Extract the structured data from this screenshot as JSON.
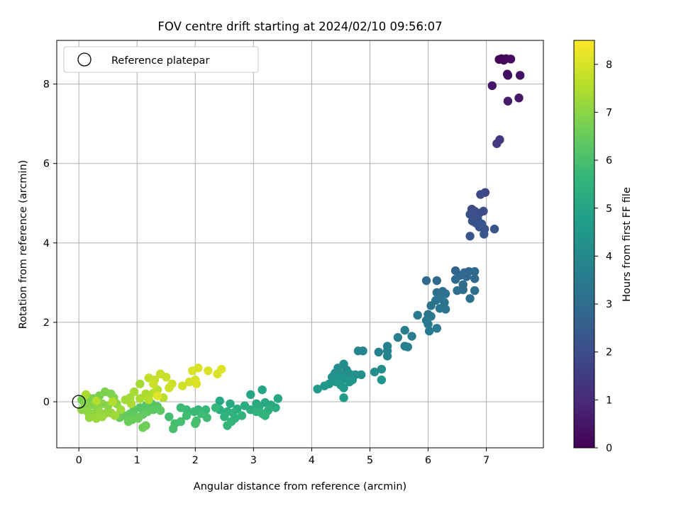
{
  "chart_data": {
    "type": "scatter",
    "title": "FOV centre drift starting at 2024/02/10 09:56:07",
    "xlabel": "Angular distance from reference (arcmin)",
    "ylabel": "Rotation from reference (arcmin)",
    "xlim": [
      -0.38,
      7.98
    ],
    "ylim": [
      -1.16,
      9.1
    ],
    "xticks": [
      0,
      1,
      2,
      3,
      4,
      5,
      6,
      7
    ],
    "yticks": [
      0,
      2,
      4,
      6,
      8
    ],
    "grid": true,
    "legend": {
      "placement": "top-left",
      "entries": [
        "Reference platepar"
      ]
    },
    "reference_point": {
      "label": "Reference platepar",
      "x": 0,
      "y": 0
    },
    "colorbar": {
      "label": "Hours from first FF file",
      "colormap": "viridis",
      "min": 0,
      "max": 8.5,
      "ticks": [
        0,
        1,
        2,
        3,
        4,
        5,
        6,
        7,
        8
      ]
    },
    "colormap_stops": [
      "#440154",
      "#482878",
      "#3e4989",
      "#31688e",
      "#26828e",
      "#1f9e89",
      "#35b779",
      "#6ece58",
      "#b5de2b",
      "#fde725"
    ],
    "points": [
      {
        "x": 7.22,
        "y": 8.62,
        "c": 0.05
      },
      {
        "x": 7.26,
        "y": 8.64,
        "c": 0.1
      },
      {
        "x": 7.3,
        "y": 8.6,
        "c": 0.15
      },
      {
        "x": 7.34,
        "y": 8.64,
        "c": 0.2
      },
      {
        "x": 7.42,
        "y": 8.63,
        "c": 0.25
      },
      {
        "x": 7.36,
        "y": 8.25,
        "c": 0.3
      },
      {
        "x": 7.37,
        "y": 8.22,
        "c": 0.35
      },
      {
        "x": 7.58,
        "y": 8.22,
        "c": 0.4
      },
      {
        "x": 7.1,
        "y": 7.96,
        "c": 0.5
      },
      {
        "x": 7.56,
        "y": 7.65,
        "c": 0.55
      },
      {
        "x": 7.37,
        "y": 7.57,
        "c": 0.6
      },
      {
        "x": 7.23,
        "y": 6.6,
        "c": 1.4
      },
      {
        "x": 7.18,
        "y": 6.5,
        "c": 1.45
      },
      {
        "x": 6.98,
        "y": 5.27,
        "c": 1.85
      },
      {
        "x": 6.9,
        "y": 5.22,
        "c": 1.9
      },
      {
        "x": 6.75,
        "y": 4.85,
        "c": 1.95
      },
      {
        "x": 6.8,
        "y": 4.8,
        "c": 2.0
      },
      {
        "x": 6.88,
        "y": 4.75,
        "c": 2.0
      },
      {
        "x": 6.95,
        "y": 4.8,
        "c": 2.05
      },
      {
        "x": 6.72,
        "y": 4.72,
        "c": 2.1
      },
      {
        "x": 6.85,
        "y": 4.62,
        "c": 2.1
      },
      {
        "x": 6.76,
        "y": 4.55,
        "c": 2.15
      },
      {
        "x": 6.82,
        "y": 4.5,
        "c": 2.15
      },
      {
        "x": 6.92,
        "y": 4.48,
        "c": 2.2
      },
      {
        "x": 6.88,
        "y": 4.4,
        "c": 2.2
      },
      {
        "x": 6.97,
        "y": 4.35,
        "c": 2.25
      },
      {
        "x": 7.14,
        "y": 4.35,
        "c": 2.25
      },
      {
        "x": 6.96,
        "y": 4.22,
        "c": 2.3
      },
      {
        "x": 6.72,
        "y": 4.17,
        "c": 2.3
      },
      {
        "x": 6.47,
        "y": 3.3,
        "c": 2.75
      },
      {
        "x": 6.62,
        "y": 3.25,
        "c": 2.8
      },
      {
        "x": 6.7,
        "y": 3.28,
        "c": 2.8
      },
      {
        "x": 6.8,
        "y": 3.28,
        "c": 2.85
      },
      {
        "x": 6.55,
        "y": 3.18,
        "c": 2.85
      },
      {
        "x": 6.66,
        "y": 3.15,
        "c": 2.9
      },
      {
        "x": 6.47,
        "y": 3.08,
        "c": 2.9
      },
      {
        "x": 6.8,
        "y": 3.1,
        "c": 2.9
      },
      {
        "x": 5.97,
        "y": 3.05,
        "c": 2.95
      },
      {
        "x": 6.15,
        "y": 3.05,
        "c": 2.95
      },
      {
        "x": 6.6,
        "y": 2.95,
        "c": 3.0
      },
      {
        "x": 6.6,
        "y": 2.82,
        "c": 3.0
      },
      {
        "x": 6.5,
        "y": 2.8,
        "c": 3.05
      },
      {
        "x": 6.8,
        "y": 2.8,
        "c": 3.05
      },
      {
        "x": 6.15,
        "y": 2.75,
        "c": 3.1
      },
      {
        "x": 6.25,
        "y": 2.78,
        "c": 3.1
      },
      {
        "x": 6.3,
        "y": 2.72,
        "c": 3.15
      },
      {
        "x": 6.72,
        "y": 2.6,
        "c": 3.15
      },
      {
        "x": 6.2,
        "y": 2.6,
        "c": 3.2
      },
      {
        "x": 6.13,
        "y": 2.55,
        "c": 3.2
      },
      {
        "x": 6.28,
        "y": 2.5,
        "c": 3.25
      },
      {
        "x": 6.05,
        "y": 2.42,
        "c": 3.25
      },
      {
        "x": 6.2,
        "y": 2.35,
        "c": 3.3
      },
      {
        "x": 6.3,
        "y": 2.33,
        "c": 3.3
      },
      {
        "x": 6.0,
        "y": 2.2,
        "c": 3.35
      },
      {
        "x": 5.82,
        "y": 2.18,
        "c": 3.4
      },
      {
        "x": 6.05,
        "y": 2.15,
        "c": 3.4
      },
      {
        "x": 5.97,
        "y": 2.05,
        "c": 3.45
      },
      {
        "x": 6.0,
        "y": 1.95,
        "c": 3.45
      },
      {
        "x": 6.15,
        "y": 1.85,
        "c": 3.5
      },
      {
        "x": 6.02,
        "y": 1.78,
        "c": 3.5
      },
      {
        "x": 5.6,
        "y": 1.8,
        "c": 3.55
      },
      {
        "x": 5.72,
        "y": 1.65,
        "c": 3.6
      },
      {
        "x": 5.48,
        "y": 1.62,
        "c": 3.6
      },
      {
        "x": 5.6,
        "y": 1.4,
        "c": 3.65
      },
      {
        "x": 5.3,
        "y": 1.4,
        "c": 3.7
      },
      {
        "x": 5.65,
        "y": 1.38,
        "c": 3.7
      },
      {
        "x": 5.3,
        "y": 1.28,
        "c": 3.75
      },
      {
        "x": 5.15,
        "y": 1.25,
        "c": 3.75
      },
      {
        "x": 5.3,
        "y": 1.15,
        "c": 3.8
      },
      {
        "x": 4.8,
        "y": 1.28,
        "c": 3.85
      },
      {
        "x": 4.88,
        "y": 1.28,
        "c": 3.85
      },
      {
        "x": 4.55,
        "y": 0.95,
        "c": 4.1
      },
      {
        "x": 4.45,
        "y": 0.85,
        "c": 4.1
      },
      {
        "x": 4.6,
        "y": 0.8,
        "c": 4.15
      },
      {
        "x": 5.2,
        "y": 0.82,
        "c": 4.15
      },
      {
        "x": 5.08,
        "y": 0.75,
        "c": 4.2
      },
      {
        "x": 4.4,
        "y": 0.72,
        "c": 4.2
      },
      {
        "x": 4.5,
        "y": 0.7,
        "c": 4.25
      },
      {
        "x": 4.65,
        "y": 0.7,
        "c": 4.25
      },
      {
        "x": 4.75,
        "y": 0.68,
        "c": 4.3
      },
      {
        "x": 4.85,
        "y": 0.68,
        "c": 4.3
      },
      {
        "x": 4.35,
        "y": 0.62,
        "c": 4.35
      },
      {
        "x": 4.47,
        "y": 0.6,
        "c": 4.35
      },
      {
        "x": 4.55,
        "y": 0.58,
        "c": 4.4
      },
      {
        "x": 4.7,
        "y": 0.55,
        "c": 4.4
      },
      {
        "x": 5.2,
        "y": 0.55,
        "c": 4.45
      },
      {
        "x": 4.42,
        "y": 0.5,
        "c": 4.45
      },
      {
        "x": 4.65,
        "y": 0.5,
        "c": 4.5
      },
      {
        "x": 4.3,
        "y": 0.45,
        "c": 4.5
      },
      {
        "x": 4.5,
        "y": 0.42,
        "c": 4.55
      },
      {
        "x": 4.22,
        "y": 0.4,
        "c": 4.55
      },
      {
        "x": 4.55,
        "y": 0.35,
        "c": 4.6
      },
      {
        "x": 4.1,
        "y": 0.32,
        "c": 4.6
      },
      {
        "x": 4.55,
        "y": 0.1,
        "c": 4.65
      },
      {
        "x": 3.15,
        "y": 0.3,
        "c": 5.0
      },
      {
        "x": 2.95,
        "y": 0.18,
        "c": 5.0
      },
      {
        "x": 3.42,
        "y": 0.08,
        "c": 5.05
      },
      {
        "x": 2.42,
        "y": 0.02,
        "c": 5.05
      },
      {
        "x": 3.2,
        "y": -0.02,
        "c": 5.1
      },
      {
        "x": 3.05,
        "y": -0.05,
        "c": 5.1
      },
      {
        "x": 2.6,
        "y": -0.05,
        "c": 5.15
      },
      {
        "x": 3.3,
        "y": -0.08,
        "c": 5.15
      },
      {
        "x": 2.85,
        "y": -0.1,
        "c": 5.2
      },
      {
        "x": 3.1,
        "y": -0.12,
        "c": 5.2
      },
      {
        "x": 3.38,
        "y": -0.15,
        "c": 5.25
      },
      {
        "x": 2.72,
        "y": -0.18,
        "c": 5.25
      },
      {
        "x": 2.42,
        "y": -0.2,
        "c": 5.3
      },
      {
        "x": 2.95,
        "y": -0.2,
        "c": 5.3
      },
      {
        "x": 3.25,
        "y": -0.22,
        "c": 5.35
      },
      {
        "x": 2.55,
        "y": -0.25,
        "c": 5.35
      },
      {
        "x": 3.05,
        "y": -0.25,
        "c": 5.4
      },
      {
        "x": 2.65,
        "y": -0.28,
        "c": 5.4
      },
      {
        "x": 3.15,
        "y": -0.3,
        "c": 5.45
      },
      {
        "x": 2.8,
        "y": -0.35,
        "c": 5.45
      },
      {
        "x": 3.2,
        "y": -0.35,
        "c": 5.5
      },
      {
        "x": 2.5,
        "y": -0.38,
        "c": 5.5
      },
      {
        "x": 2.68,
        "y": -0.42,
        "c": 5.55
      },
      {
        "x": 2.62,
        "y": -0.5,
        "c": 5.55
      },
      {
        "x": 2.55,
        "y": -0.6,
        "c": 5.6
      },
      {
        "x": 2.35,
        "y": -0.15,
        "c": 5.65
      },
      {
        "x": 2.18,
        "y": -0.2,
        "c": 5.7
      },
      {
        "x": 2.05,
        "y": -0.2,
        "c": 5.7
      },
      {
        "x": 1.98,
        "y": -0.25,
        "c": 5.75
      },
      {
        "x": 1.85,
        "y": -0.2,
        "c": 5.75
      },
      {
        "x": 1.75,
        "y": -0.15,
        "c": 5.8
      },
      {
        "x": 2.1,
        "y": -0.3,
        "c": 5.8
      },
      {
        "x": 1.85,
        "y": -0.35,
        "c": 5.85
      },
      {
        "x": 2.2,
        "y": -0.4,
        "c": 5.85
      },
      {
        "x": 1.55,
        "y": -0.38,
        "c": 5.9
      },
      {
        "x": 2.02,
        "y": -0.48,
        "c": 5.9
      },
      {
        "x": 1.75,
        "y": -0.5,
        "c": 5.95
      },
      {
        "x": 1.65,
        "y": -0.55,
        "c": 5.95
      },
      {
        "x": 2.0,
        "y": -0.55,
        "c": 6.0
      },
      {
        "x": 1.62,
        "y": -0.68,
        "c": 6.0
      },
      {
        "x": 1.25,
        "y": -0.05,
        "c": 6.2
      },
      {
        "x": 1.15,
        "y": -0.1,
        "c": 6.2
      },
      {
        "x": 1.35,
        "y": -0.12,
        "c": 6.25
      },
      {
        "x": 1.05,
        "y": -0.15,
        "c": 6.25
      },
      {
        "x": 1.28,
        "y": -0.2,
        "c": 6.3
      },
      {
        "x": 0.95,
        "y": -0.2,
        "c": 6.3
      },
      {
        "x": 1.18,
        "y": -0.25,
        "c": 6.35
      },
      {
        "x": 1.4,
        "y": -0.22,
        "c": 6.35
      },
      {
        "x": 0.88,
        "y": -0.3,
        "c": 6.4
      },
      {
        "x": 1.1,
        "y": -0.32,
        "c": 6.4
      },
      {
        "x": 0.78,
        "y": -0.35,
        "c": 6.45
      },
      {
        "x": 1.0,
        "y": -0.38,
        "c": 6.45
      },
      {
        "x": 0.7,
        "y": -0.4,
        "c": 6.5
      },
      {
        "x": 0.92,
        "y": -0.45,
        "c": 6.5
      },
      {
        "x": 1.02,
        "y": -0.42,
        "c": 6.55
      },
      {
        "x": 0.85,
        "y": -0.5,
        "c": 6.55
      },
      {
        "x": 1.15,
        "y": -0.6,
        "c": 6.6
      },
      {
        "x": 1.1,
        "y": -0.65,
        "c": 6.6
      },
      {
        "x": 0.05,
        "y": 0.05,
        "c": 6.7
      },
      {
        "x": 0.15,
        "y": 0.12,
        "c": 6.7
      },
      {
        "x": 0.25,
        "y": 0.08,
        "c": 6.75
      },
      {
        "x": 0.35,
        "y": 0.15,
        "c": 6.75
      },
      {
        "x": 0.45,
        "y": 0.25,
        "c": 6.8
      },
      {
        "x": 0.55,
        "y": 0.2,
        "c": 6.8
      },
      {
        "x": 0.6,
        "y": 0.1,
        "c": 6.85
      },
      {
        "x": 0.1,
        "y": -0.05,
        "c": 6.85
      },
      {
        "x": 0.2,
        "y": -0.08,
        "c": 6.9
      },
      {
        "x": 0.3,
        "y": -0.12,
        "c": 6.9
      },
      {
        "x": 0.4,
        "y": -0.05,
        "c": 6.95
      },
      {
        "x": 0.5,
        "y": -0.1,
        "c": 6.95
      },
      {
        "x": 0.65,
        "y": -0.05,
        "c": 7.0
      },
      {
        "x": 0.05,
        "y": -0.2,
        "c": 7.0
      },
      {
        "x": 0.15,
        "y": -0.25,
        "c": 7.05
      },
      {
        "x": 0.25,
        "y": -0.3,
        "c": 7.05
      },
      {
        "x": 0.35,
        "y": -0.25,
        "c": 7.1
      },
      {
        "x": 0.45,
        "y": -0.3,
        "c": 7.1
      },
      {
        "x": 0.55,
        "y": -0.28,
        "c": 7.15
      },
      {
        "x": 0.18,
        "y": -0.4,
        "c": 7.15
      },
      {
        "x": 0.3,
        "y": -0.42,
        "c": 7.2
      },
      {
        "x": 0.4,
        "y": -0.38,
        "c": 7.2
      },
      {
        "x": 0.62,
        "y": -0.35,
        "c": 7.25
      },
      {
        "x": 0.72,
        "y": -0.2,
        "c": 7.25
      },
      {
        "x": 0.8,
        "y": 0.05,
        "c": 7.3
      },
      {
        "x": 0.88,
        "y": 0.1,
        "c": 7.3
      },
      {
        "x": 0.95,
        "y": 0.25,
        "c": 7.35
      },
      {
        "x": 1.05,
        "y": 0.45,
        "c": 7.35
      },
      {
        "x": 0.9,
        "y": -0.05,
        "c": 7.4
      },
      {
        "x": 1.05,
        "y": 0.08,
        "c": 7.4
      },
      {
        "x": 1.15,
        "y": 0.2,
        "c": 7.45
      },
      {
        "x": 0.12,
        "y": 0.18,
        "c": 7.45
      },
      {
        "x": 0.58,
        "y": 0.0,
        "c": 7.5
      },
      {
        "x": 0.3,
        "y": 0.02,
        "c": 7.5
      },
      {
        "x": 1.2,
        "y": 0.05,
        "c": 7.55
      },
      {
        "x": 1.28,
        "y": 0.22,
        "c": 7.55
      },
      {
        "x": 1.35,
        "y": 0.3,
        "c": 7.6
      },
      {
        "x": 1.45,
        "y": 0.1,
        "c": 7.6
      },
      {
        "x": 1.2,
        "y": 0.6,
        "c": 7.7
      },
      {
        "x": 1.3,
        "y": 0.55,
        "c": 7.75
      },
      {
        "x": 1.4,
        "y": 0.7,
        "c": 7.8
      },
      {
        "x": 1.5,
        "y": 0.62,
        "c": 7.8
      },
      {
        "x": 1.28,
        "y": 0.45,
        "c": 7.85
      },
      {
        "x": 1.6,
        "y": 0.45,
        "c": 7.85
      },
      {
        "x": 1.55,
        "y": 0.35,
        "c": 7.9
      },
      {
        "x": 1.78,
        "y": 0.4,
        "c": 7.9
      },
      {
        "x": 1.9,
        "y": 0.5,
        "c": 7.95
      },
      {
        "x": 2.0,
        "y": 0.55,
        "c": 7.95
      },
      {
        "x": 1.95,
        "y": 0.78,
        "c": 8.0
      },
      {
        "x": 2.05,
        "y": 0.85,
        "c": 8.0
      },
      {
        "x": 2.22,
        "y": 0.78,
        "c": 8.05
      },
      {
        "x": 2.38,
        "y": 0.7,
        "c": 8.05
      },
      {
        "x": 2.45,
        "y": 0.82,
        "c": 8.1
      },
      {
        "x": 2.02,
        "y": 0.45,
        "c": 8.1
      },
      {
        "x": 1.35,
        "y": 0.15,
        "c": 8.15
      }
    ]
  }
}
